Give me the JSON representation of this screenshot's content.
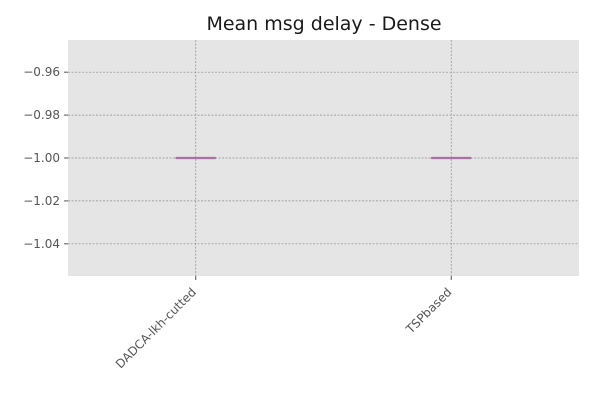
{
  "chart_data": {
    "type": "box",
    "title": "Mean msg delay - Dense",
    "xlabel": "",
    "ylabel": "",
    "categories": [
      "DADCA-lkh-cutted",
      "TSPbased"
    ],
    "values": [
      -1.0,
      -1.0
    ],
    "box_stats": [
      {
        "category": "DADCA-lkh-cutted",
        "min": -1.0,
        "q1": -1.0,
        "median": -1.0,
        "q3": -1.0,
        "max": -1.0
      },
      {
        "category": "TSPbased",
        "min": -1.0,
        "q1": -1.0,
        "median": -1.0,
        "q3": -1.0,
        "max": -1.0
      }
    ],
    "ylim": [
      -1.055,
      -0.945
    ],
    "yticks": [
      -0.96,
      -0.98,
      -1.0,
      -1.02,
      -1.04
    ],
    "ytick_labels": [
      "−0.96",
      "−0.98",
      "−1.00",
      "−1.02",
      "−1.04"
    ],
    "grid": true,
    "x_tick_rotation": 45,
    "colors": {
      "background": "#e5e5e5",
      "grid": "#8c8c8c",
      "box": "#c78fc0",
      "median": "#9c6a9a",
      "tick": "#555555"
    }
  }
}
